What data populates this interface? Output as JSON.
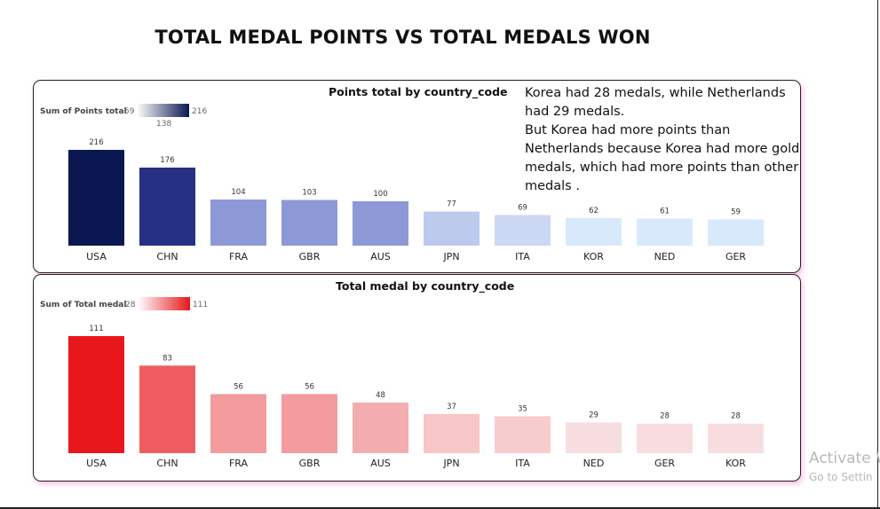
{
  "page": {
    "title": "TOTAL MEDAL POINTS VS TOTAL MEDALS WON"
  },
  "annotation": {
    "paragraphs": [
      "Korea had 28 medals, while Netherlands had 29 medals.",
      "But Korea had more points than Netherlands because Korea had more gold medals, which had more points than other medals ."
    ]
  },
  "watermark": {
    "line1": "Activate W",
    "line2": "Go to Settin"
  },
  "colors": {
    "points_low": "#d8e9fb",
    "points_high": "#0b1750",
    "medals_low": "#f8dde0",
    "medals_high": "#e8171b"
  },
  "chart_data": [
    {
      "type": "bar",
      "title": "Points total by country_code",
      "legend": {
        "label": "Sum of Points total",
        "min": "59",
        "mid": "138",
        "max": "216"
      },
      "categories": [
        "USA",
        "CHN",
        "FRA",
        "GBR",
        "AUS",
        "JPN",
        "ITA",
        "KOR",
        "NED",
        "GER"
      ],
      "values": [
        216,
        176,
        104,
        103,
        100,
        77,
        69,
        62,
        61,
        59
      ],
      "bar_colors": [
        "#0b1750",
        "#263085",
        "#8c99d6",
        "#8c99d6",
        "#8c99d6",
        "#bccaee",
        "#cad8f4",
        "#d8e9fb",
        "#d8e9fb",
        "#d8e9fb"
      ]
    },
    {
      "type": "bar",
      "title": "Total medal by country_code",
      "legend": {
        "label": "Sum of Total medal",
        "min": "28",
        "max": "111"
      },
      "categories": [
        "USA",
        "CHN",
        "FRA",
        "GBR",
        "AUS",
        "JPN",
        "ITA",
        "NED",
        "GER",
        "KOR"
      ],
      "values": [
        111,
        83,
        56,
        56,
        48,
        37,
        35,
        29,
        28,
        28
      ],
      "bar_colors": [
        "#e8171b",
        "#f05d60",
        "#f39b9d",
        "#f39b9d",
        "#f4adaf",
        "#f7c6c8",
        "#f7ccce",
        "#f8dde0",
        "#f8dde0",
        "#f8dde0"
      ]
    }
  ]
}
